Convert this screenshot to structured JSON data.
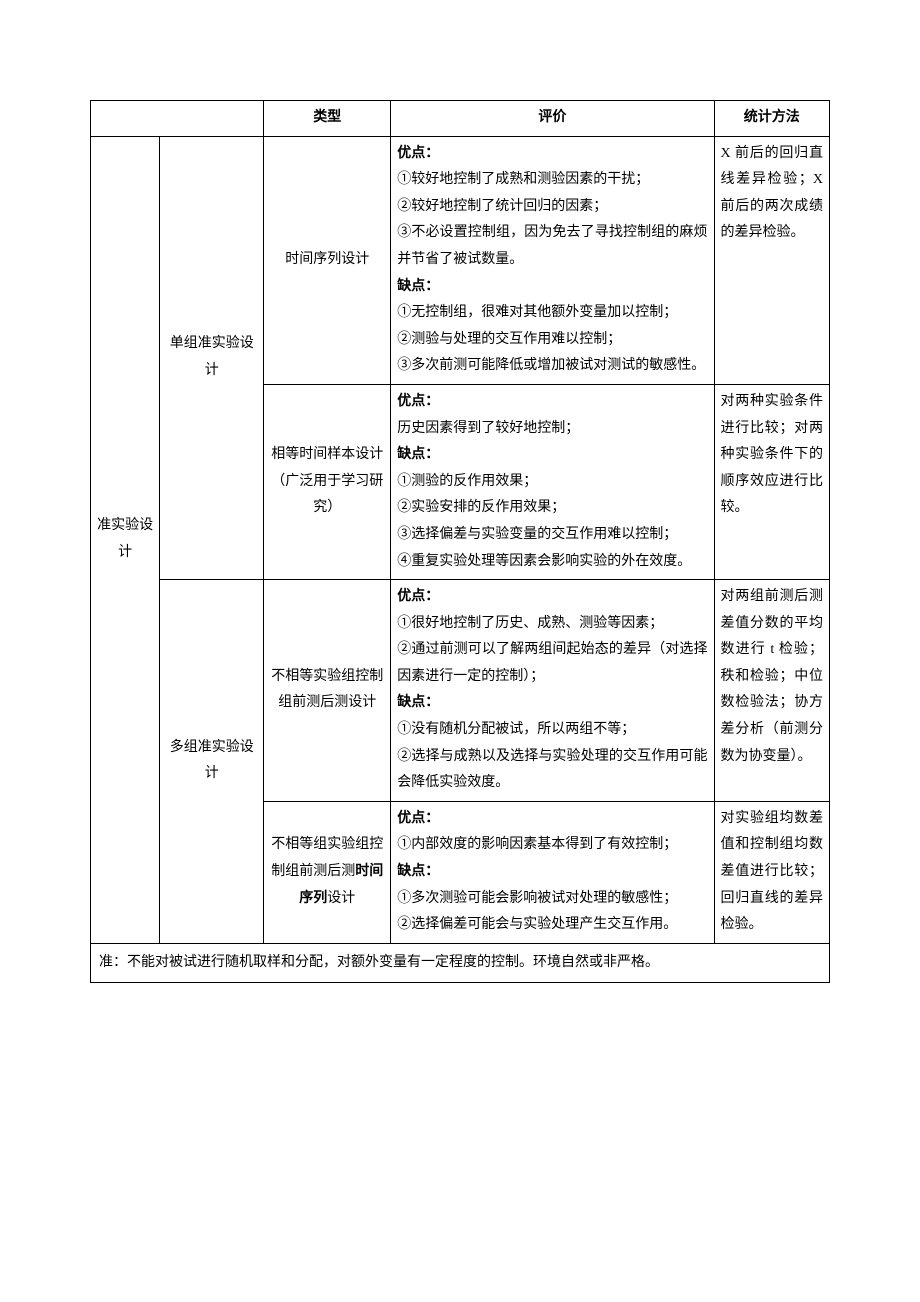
{
  "colors": {
    "border": "#000000",
    "background": "#ffffff",
    "text": "#000000"
  },
  "typography": {
    "font_family": "SimSun",
    "font_size": 14,
    "line_height": 1.9
  },
  "table": {
    "headers": {
      "type": "类型",
      "evaluation": "评价",
      "statistics": "统计方法"
    },
    "category_main": "准实验设计",
    "groups": [
      {
        "name": "单组准实验设计",
        "rows": [
          {
            "type": "时间序列设计",
            "evaluation": {
              "advantages_label": "优点：",
              "advantages": [
                "①较好地控制了成熟和测验因素的干扰；",
                "②较好地控制了统计回归的因素；",
                "③不必设置控制组，因为免去了寻找控制组的麻烦并节省了被试数量。"
              ],
              "disadvantages_label": "缺点：",
              "disadvantages": [
                "①无控制组，很难对其他额外变量加以控制；",
                "②测验与处理的交互作用难以控制；",
                "③多次前测可能降低或增加被试对测试的敏感性。"
              ]
            },
            "statistics": "X 前后的回归直线差异检验；X 前后的两次成绩的差异检验。"
          },
          {
            "type_main": "相等时间样本设计",
            "type_note": "（广泛用于学习研究）",
            "evaluation": {
              "advantages_label": "优点：",
              "advantages": [
                "历史因素得到了较好地控制；"
              ],
              "disadvantages_label": "缺点：",
              "disadvantages": [
                "①测验的反作用效果；",
                "②实验安排的反作用效果；",
                "③选择偏差与实验变量的交互作用难以控制；",
                "④重复实验处理等因素会影响实验的外在效度。"
              ]
            },
            "statistics": "对两种实验条件进行比较；对两种实验条件下的顺序效应进行比较。"
          }
        ]
      },
      {
        "name": "多组准实验设计",
        "rows": [
          {
            "type": "不相等实验组控制组前测后测设计",
            "evaluation": {
              "advantages_label": "优点：",
              "advantages": [
                "①很好地控制了历史、成熟、测验等因素；",
                "②通过前测可以了解两组间起始态的差异（对选择因素进行一定的控制）；"
              ],
              "disadvantages_label": "缺点：",
              "disadvantages": [
                "①没有随机分配被试，所以两组不等；",
                "②选择与成熟以及选择与实验处理的交互作用可能会降低实验效度。"
              ]
            },
            "statistics": "对两组前测后测差值分数的平均数进行 t 检验；秩和检验；中位数检验法；协方差分析（前测分数为协变量）。"
          },
          {
            "type_prefix": "不相等组实验组控制组前测后测",
            "type_bold": "时间序列",
            "type_suffix": "设计",
            "evaluation": {
              "advantages_label": "优点：",
              "advantages": [
                "①内部效度的影响因素基本得到了有效控制；"
              ],
              "disadvantages_label": "缺点：",
              "disadvantages": [
                "①多次测验可能会影响被试对处理的敏感性；",
                "②选择偏差可能会与实验处理产生交互作用。"
              ]
            },
            "statistics": "对实验组均数差值和控制组均数差值进行比较；回归直线的差异检验。"
          }
        ]
      }
    ],
    "footer": "准：不能对被试进行随机取样和分配，对额外变量有一定程度的控制。环境自然或非严格。"
  }
}
